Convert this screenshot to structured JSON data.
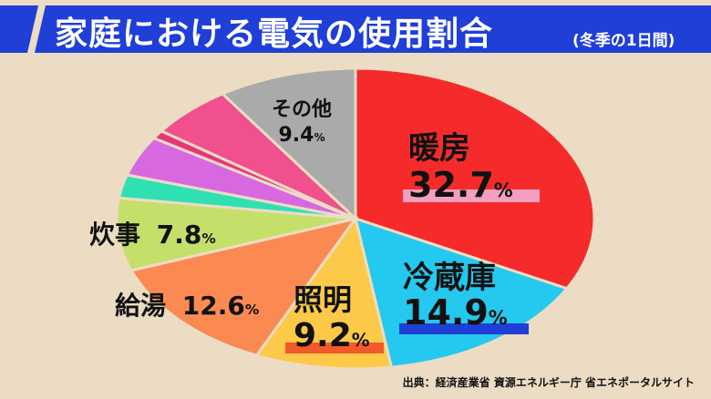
{
  "header": {
    "title": "家庭における電気の使用割合",
    "subtitle": "(冬季の1日間)"
  },
  "source": "出典：経済産業省 資源エネルギー庁 省エネポータルサイト",
  "colors": {
    "banner": "#1f3fd6",
    "background": "#ecdcc4"
  },
  "chart_data": {
    "type": "pie",
    "title": "家庭における電気の使用割合",
    "subtitle": "(冬季の1日間)",
    "unit": "%",
    "slices": [
      {
        "name": "暖房",
        "value": 32.7,
        "color": "#f52b2b"
      },
      {
        "name": "冷蔵庫",
        "value": 14.9,
        "color": "#25c8ee"
      },
      {
        "name": "照明",
        "value": 9.2,
        "color": "#fdc948"
      },
      {
        "name": "給湯",
        "value": 12.6,
        "color": "#fb8a52"
      },
      {
        "name": "炊事",
        "value": 7.8,
        "color": "#c4e06a"
      },
      {
        "name": "",
        "value": 2.5,
        "color": "#2fe0b3"
      },
      {
        "name": "",
        "value": 4.3,
        "color": "#d868e0"
      },
      {
        "name": "",
        "value": 0.9,
        "color": "#e6357a"
      },
      {
        "name": "",
        "value": 5.7,
        "color": "#f0508e"
      },
      {
        "name": "その他",
        "value": 9.4,
        "color": "#aaaaaa"
      }
    ],
    "labels": [
      {
        "name": "暖房",
        "pct": "32.7",
        "unit": "%"
      },
      {
        "name": "冷蔵庫",
        "pct": "14.9",
        "unit": "%"
      },
      {
        "name": "照明",
        "pct": "9.2",
        "unit": "%"
      },
      {
        "name": "給湯",
        "pct": "12.6",
        "unit": "%"
      },
      {
        "name": "炊事",
        "pct": "7.8",
        "unit": "%"
      },
      {
        "name": "その他",
        "pct": "9.4",
        "unit": "%"
      }
    ]
  }
}
